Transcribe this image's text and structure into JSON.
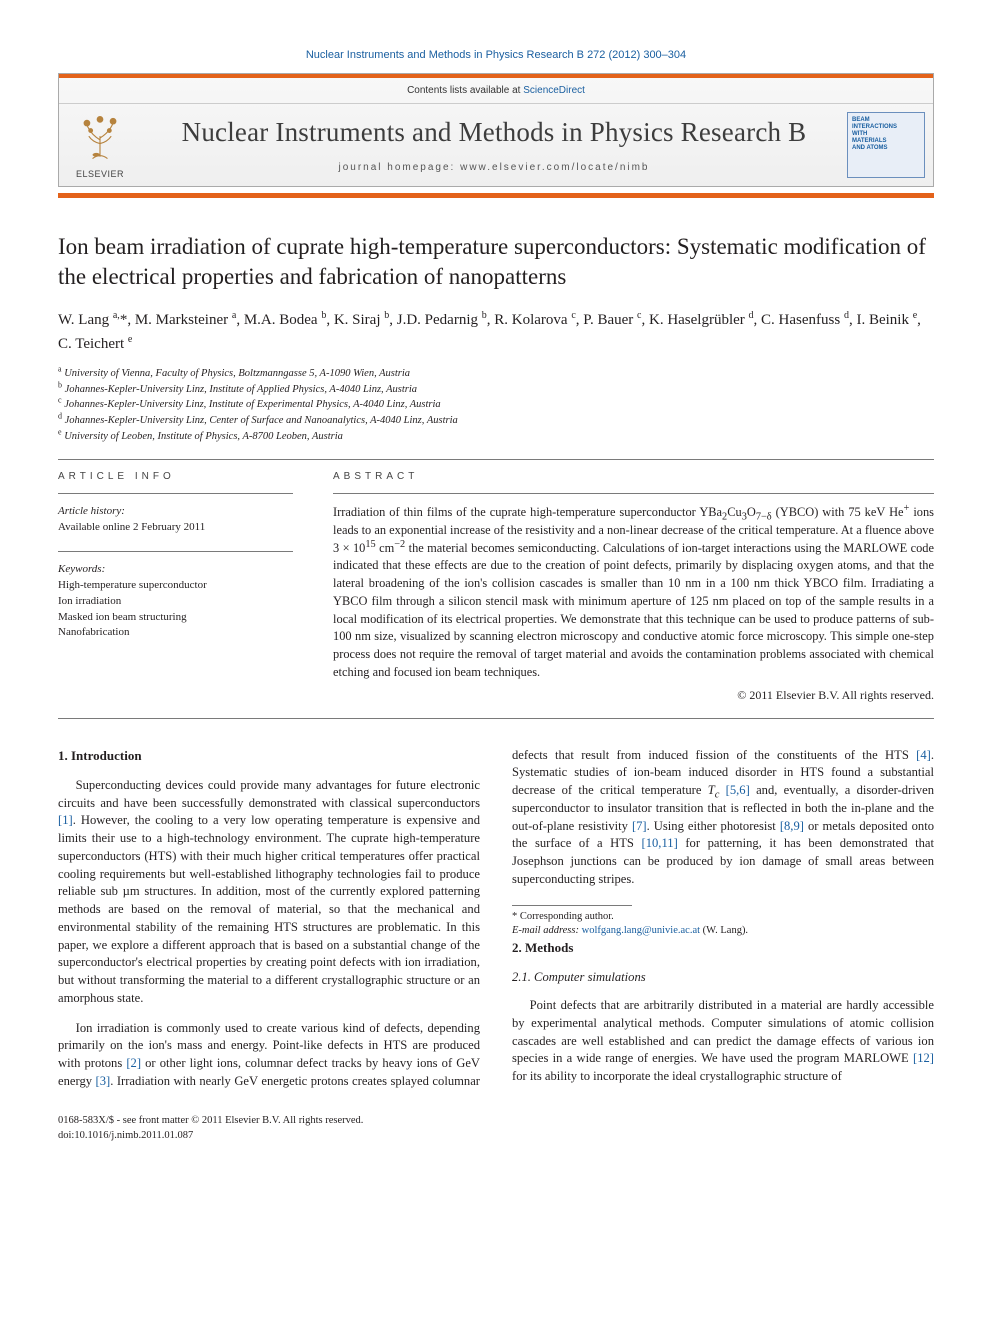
{
  "journal": {
    "link_text_prefix": "Nuclear Instruments and Methods in Physics Research B 272 (2012) 300–304",
    "contents_line_prefix": "Contents lists available at ",
    "contents_link": "ScienceDirect",
    "title": "Nuclear Instruments and Methods in Physics Research B",
    "homepage_label": "journal homepage: ",
    "homepage_url": "www.elsevier.com/locate/nimb",
    "publisher_word": "ELSEVIER",
    "cover_lines": [
      "BEAM",
      "INTERACTIONS",
      "WITH",
      "MATERIALS",
      "AND ATOMS"
    ]
  },
  "article": {
    "title": "Ion beam irradiation of cuprate high-temperature superconductors: Systematic modification of the electrical properties and fabrication of nanopatterns",
    "authors_html": "W. Lang <sup>a,</sup>*, M. Marksteiner <sup>a</sup>, M.A. Bodea <sup>b</sup>, K. Siraj <sup>b</sup>, J.D. Pedarnig <sup>b</sup>, R. Kolarova <sup>c</sup>, P. Bauer <sup>c</sup>, K. Haselgrübler <sup>d</sup>, C. Hasenfuss <sup>d</sup>, I. Beinik <sup>e</sup>, C. Teichert <sup>e</sup>",
    "affiliations": [
      {
        "sup": "a",
        "text": "University of Vienna, Faculty of Physics, Boltzmanngasse 5, A-1090 Wien, Austria"
      },
      {
        "sup": "b",
        "text": "Johannes-Kepler-University Linz, Institute of Applied Physics, A-4040 Linz, Austria"
      },
      {
        "sup": "c",
        "text": "Johannes-Kepler-University Linz, Institute of Experimental Physics, A-4040 Linz, Austria"
      },
      {
        "sup": "d",
        "text": "Johannes-Kepler-University Linz, Center of Surface and Nanoanalytics, A-4040 Linz, Austria"
      },
      {
        "sup": "e",
        "text": "University of Leoben, Institute of Physics, A-8700 Leoben, Austria"
      }
    ]
  },
  "meta": {
    "info_label": "article info",
    "abstract_label": "abstract",
    "history_head": "Article history:",
    "history_text": "Available online 2 February 2011",
    "keywords_head": "Keywords:",
    "keywords": [
      "High-temperature superconductor",
      "Ion irradiation",
      "Masked ion beam structuring",
      "Nanofabrication"
    ]
  },
  "abstract": {
    "text_html": "Irradiation of thin films of the cuprate high-temperature superconductor YBa<sub>2</sub>Cu<sub>3</sub>O<sub>7−δ</sub> (YBCO) with 75 keV He<sup>+</sup> ions leads to an exponential increase of the resistivity and a non-linear decrease of the critical temperature. At a fluence above 3 × 10<sup>15</sup> cm<sup>−2</sup> the material becomes semiconducting. Calculations of ion-target interactions using the MARLOWE code indicated that these effects are due to the creation of point defects, primarily by displacing oxygen atoms, and that the lateral broadening of the ion's collision cascades is smaller than 10 nm in a 100 nm thick YBCO film. Irradiating a YBCO film through a silicon stencil mask with minimum aperture of 125 nm placed on top of the sample results in a local modification of its electrical properties. We demonstrate that this technique can be used to produce patterns of sub-100 nm size, visualized by scanning electron microscopy and conductive atomic force microscopy. This simple one-step process does not require the removal of target material and avoids the contamination problems associated with chemical etching and focused ion beam techniques.",
    "copyright": "© 2011 Elsevier B.V. All rights reserved."
  },
  "sections": {
    "s1_title": "1. Introduction",
    "s1_p1_html": "Superconducting devices could provide many advantages for future electronic circuits and have been successfully demonstrated with classical superconductors <span class=\"ref\">[1]</span>. However, the cooling to a very low operating temperature is expensive and limits their use to a high-technology environment. The cuprate high-temperature superconductors (HTS) with their much higher critical temperatures offer practical cooling requirements but well-established lithography technologies fail to produce reliable sub µm structures. In addition, most of the currently explored patterning methods are based on the removal of material, so that the mechanical and environmental stability of the remaining HTS structures are problematic. In this paper, we explore a different approach that is based on a substantial change of the superconductor's electrical properties by creating point defects with ion irradiation, but without transforming the material to a different crystallographic structure or an amorphous state.",
    "s1_p2_html": "Ion irradiation is commonly used to create various kind of defects, depending primarily on the ion's mass and energy. Point-like defects in HTS are produced with protons <span class=\"ref\">[2]</span> or other light ions, columnar defect tracks by heavy ions of GeV energy <span class=\"ref\">[3]</span>. Irradiation with nearly GeV energetic protons creates splayed columnar defects that result from induced fission of the constituents of the HTS <span class=\"ref\">[4]</span>. Systematic studies of ion-beam induced disorder in HTS found a substantial decrease of the critical temperature <i>T<sub>c</sub></i> <span class=\"ref\">[5,6]</span> and, eventually, a disorder-driven superconductor to insulator transition that is reflected in both the in-plane and the out-of-plane resistivity <span class=\"ref\">[7]</span>. Using either photoresist <span class=\"ref\">[8,9]</span> or metals deposited onto the surface of a HTS <span class=\"ref\">[10,11]</span> for patterning, it has been demonstrated that Josephson junctions can be produced by ion damage of small areas between superconducting stripes.",
    "s2_title": "2. Methods",
    "s2_1_title": "2.1. Computer simulations",
    "s2_1_p1_html": "Point defects that are arbitrarily distributed in a material are hardly accessible by experimental analytical methods. Computer simulations of atomic collision cascades are well established and can predict the damage effects of various ion species in a wide range of energies. We have used the program MARLOWE <span class=\"ref\">[12]</span> for its ability to incorporate the ideal crystallographic structure of"
  },
  "footnote": {
    "corr_label": "* Corresponding author.",
    "email_label": "E-mail address:",
    "email": "wolfgang.lang@univie.ac.at",
    "email_who": "(W. Lang)."
  },
  "footer": {
    "line1": "0168-583X/$ - see front matter © 2011 Elsevier B.V. All rights reserved.",
    "line2": "doi:10.1016/j.nimb.2011.01.087"
  },
  "colors": {
    "orange": "#e3621a",
    "link": "#1a5fa0",
    "text": "#231f20"
  }
}
